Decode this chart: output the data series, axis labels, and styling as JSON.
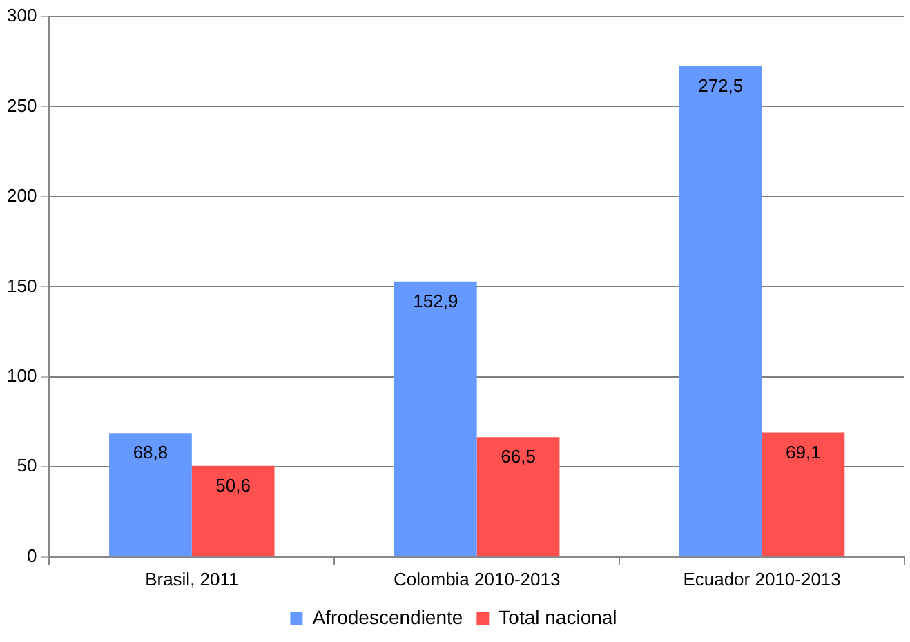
{
  "chart_data": {
    "type": "bar",
    "categories": [
      "Brasil, 2011",
      "Colombia 2010-2013",
      "Ecuador 2010-2013"
    ],
    "series": [
      {
        "name": "Afrodescendiente",
        "color": "#6699ff",
        "values": [
          68.8,
          152.9,
          272.5
        ],
        "value_labels": [
          "68,8",
          "152,9",
          "272,5"
        ]
      },
      {
        "name": "Total nacional",
        "color": "#ff5050",
        "values": [
          50.6,
          66.5,
          69.1
        ],
        "value_labels": [
          "50,6",
          "66,5",
          "69,1"
        ]
      }
    ],
    "ylim": [
      0,
      300
    ],
    "yticks": [
      0,
      50,
      100,
      150,
      200,
      250,
      300
    ],
    "grid": "y",
    "legend": "bottom"
  }
}
